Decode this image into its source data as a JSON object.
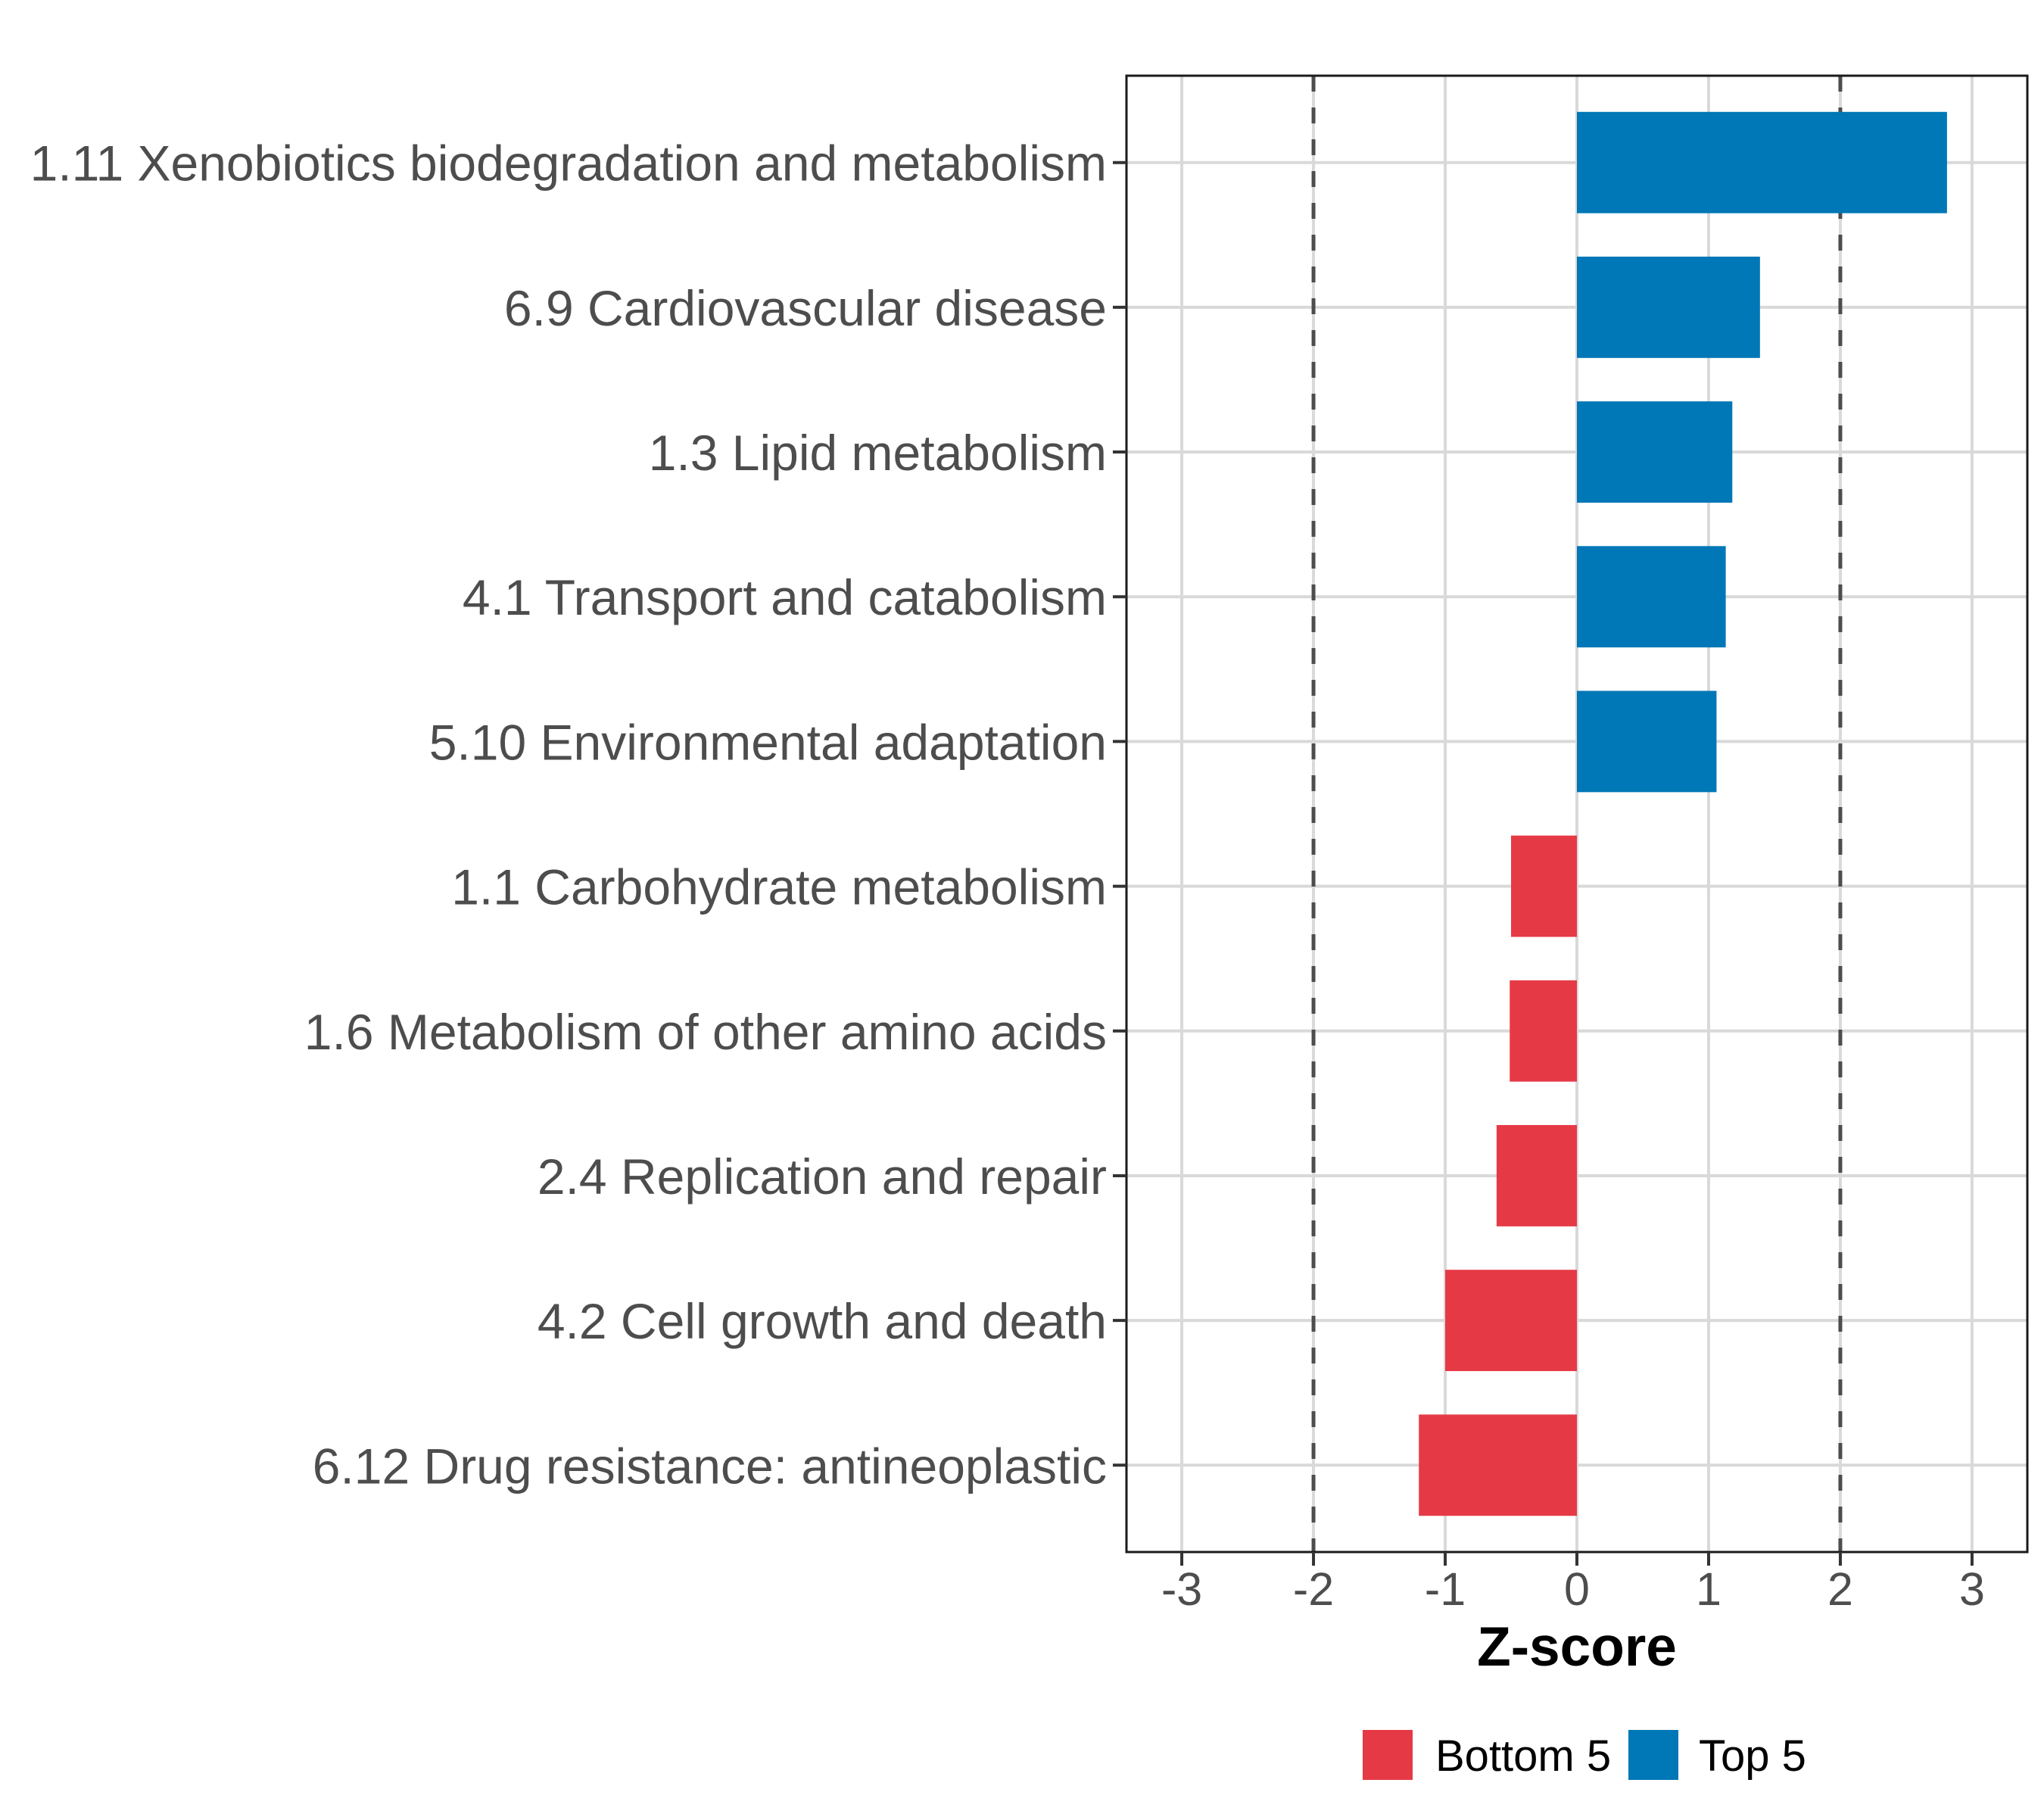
{
  "chart_data": {
    "type": "bar",
    "orientation": "horizontal",
    "title": "",
    "xlabel": "Z-score",
    "ylabel": "",
    "xlim": [
      -3.42,
      3.42
    ],
    "x_ticks": [
      -3,
      -2,
      -1,
      0,
      1,
      2,
      3
    ],
    "x_tick_labels": [
      "-3",
      "-2",
      "-1",
      "0",
      "1",
      "2",
      "3"
    ],
    "reference_lines": [
      -2,
      2
    ],
    "grid": true,
    "legend_position": "bottom",
    "categories": [
      "1.11 Xenobiotics biodegradation and metabolism",
      "6.9 Cardiovascular disease",
      "1.3 Lipid metabolism",
      "4.1 Transport and catabolism",
      "5.10 Environmental adaptation",
      "1.1 Carbohydrate metabolism",
      "1.6 Metabolism of other amino acids",
      "2.4 Replication and repair",
      "4.2 Cell growth and death",
      "6.12 Drug resistance: antineoplastic"
    ],
    "values": [
      2.81,
      1.39,
      1.18,
      1.13,
      1.06,
      -0.5,
      -0.51,
      -0.61,
      -1.0,
      -1.2
    ],
    "groups": [
      "Top 5",
      "Top 5",
      "Top 5",
      "Top 5",
      "Top 5",
      "Bottom 5",
      "Bottom 5",
      "Bottom 5",
      "Bottom 5",
      "Bottom 5"
    ],
    "legend": [
      {
        "name": "Bottom 5",
        "color": "#E63946"
      },
      {
        "name": "Top 5",
        "color": "#0077B6"
      }
    ]
  }
}
